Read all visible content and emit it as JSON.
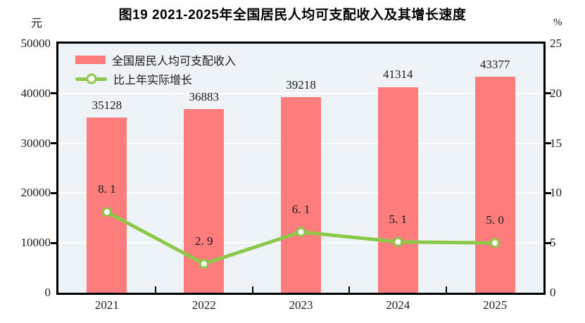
{
  "title": "图19  2021-2025年全国居民人均可支配收入及其增长速度",
  "axes": {
    "left_unit": "元",
    "right_unit": "%",
    "left_ticks": [
      "50000",
      "40000",
      "30000",
      "20000",
      "10000",
      "0"
    ],
    "right_ticks": [
      "25",
      "20",
      "15",
      "10",
      "5",
      "0"
    ]
  },
  "legend": [
    {
      "label": "全国居民人均可支配收入",
      "marker": "bar-swatch"
    },
    {
      "label": "比上年实际增长",
      "marker": "line-marker"
    }
  ],
  "colors": {
    "bar": "#FC7D7C",
    "line": "#8DC84A",
    "plot_bg": "#EEF3F7",
    "grid": "#FFFFFF",
    "axis": "#000000",
    "text": "#1A1A1A"
  },
  "chart_data": {
    "type": "bar",
    "subtype": "bar+line dual-axis",
    "title": "图19  2021-2025年全国居民人均可支配收入及其增长速度",
    "categories": [
      "2021",
      "2022",
      "2023",
      "2024",
      "2025"
    ],
    "series": [
      {
        "name": "全国居民人均可支配收入",
        "type": "bar",
        "axis": "left",
        "unit": "元",
        "values": [
          35128,
          36883,
          39218,
          41314,
          43377
        ],
        "labels": [
          "35128",
          "36883",
          "39218",
          "41314",
          "43377"
        ]
      },
      {
        "name": "比上年实际增长",
        "type": "line",
        "axis": "right",
        "unit": "%",
        "values": [
          8.1,
          2.9,
          6.1,
          5.1,
          5.0
        ],
        "labels": [
          "8. 1",
          "2. 9",
          "6. 1",
          "5. 1",
          "5. 0"
        ]
      }
    ],
    "left_ylim": [
      0,
      50000
    ],
    "left_step": 10000,
    "right_ylim": [
      0,
      25
    ],
    "right_step": 5,
    "grid": true,
    "legend_position": "top-left-inside"
  }
}
